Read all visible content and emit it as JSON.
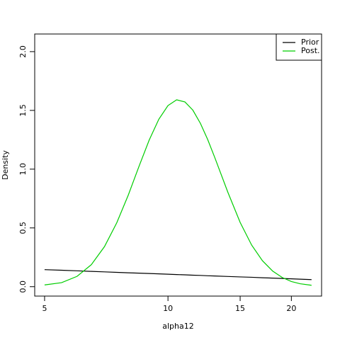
{
  "chart_data": {
    "type": "line",
    "xlabel": "alpha12",
    "ylabel": "Density",
    "xscale": "log",
    "x": [
      5,
      5.5,
      6,
      6.5,
      7,
      7.5,
      8,
      8.5,
      9,
      9.5,
      10,
      10.5,
      11,
      11.5,
      12,
      12.5,
      13,
      14,
      15,
      16,
      17,
      18,
      19,
      20,
      21,
      22.4
    ],
    "series": [
      {
        "name": "Prior",
        "color": "#000000",
        "values": [
          0.145,
          0.14,
          0.135,
          0.13,
          0.126,
          0.122,
          0.118,
          0.115,
          0.112,
          0.109,
          0.106,
          0.103,
          0.101,
          0.098,
          0.096,
          0.093,
          0.091,
          0.087,
          0.083,
          0.08,
          0.076,
          0.073,
          0.07,
          0.067,
          0.064,
          0.06
        ]
      },
      {
        "name": "Post.",
        "color": "#00cd00",
        "values": [
          0.015,
          0.034,
          0.088,
          0.187,
          0.341,
          0.544,
          0.779,
          1.025,
          1.248,
          1.425,
          1.541,
          1.59,
          1.572,
          1.502,
          1.389,
          1.252,
          1.101,
          0.803,
          0.547,
          0.354,
          0.221,
          0.133,
          0.078,
          0.044,
          0.025,
          0.012
        ]
      }
    ],
    "xlim": [
      4.73,
      23.7
    ],
    "ylim": [
      -0.08,
      2.15
    ],
    "xticks": [
      5,
      10,
      15,
      20
    ],
    "yticks": [
      {
        "value": 0,
        "label": "0.0"
      },
      0.5,
      {
        "value": 1,
        "label": "1.0"
      },
      1.5,
      {
        "value": 2,
        "label": "2.0"
      }
    ],
    "legend": "top-right"
  }
}
